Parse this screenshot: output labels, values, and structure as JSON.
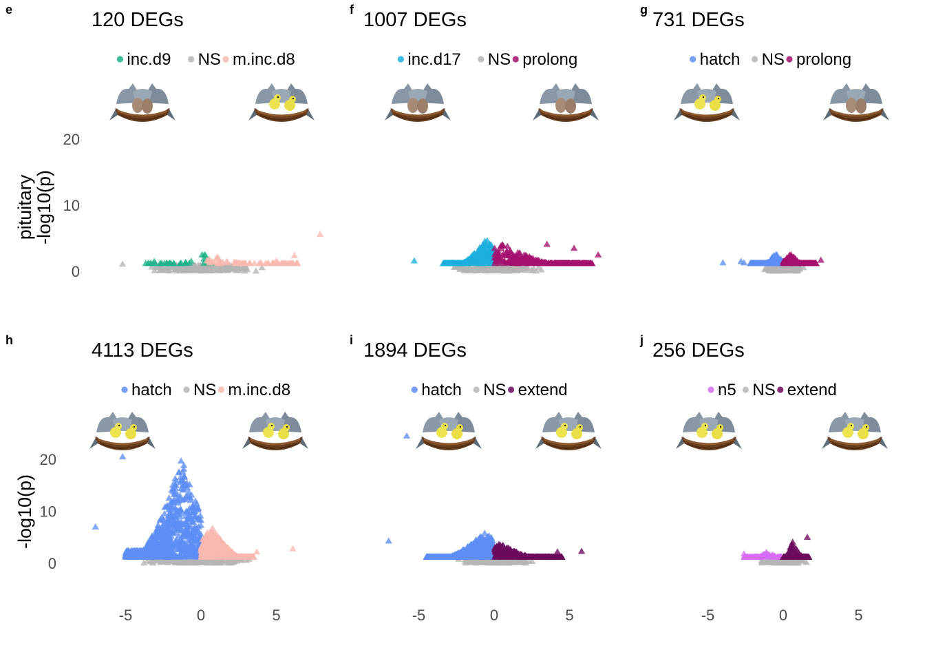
{
  "figure": {
    "row_ylabels": [
      [
        "pituitary",
        "-log10(p)"
      ],
      [
        "-log10(p)"
      ]
    ],
    "x_ticks": [
      "-5",
      "0",
      "5"
    ],
    "y_ticks": [
      "0",
      "10",
      "20"
    ]
  },
  "chart_data": [
    {
      "type": "scatter",
      "panel": "e",
      "title": "120 DEGs",
      "legend": [
        {
          "label": "inc.d9",
          "color": "#1FB38A"
        },
        {
          "label": "NS",
          "color": "#B5B5B5"
        },
        {
          "label": "m.inc.d8",
          "color": "#F8B9B0"
        }
      ],
      "xlim": [
        -7.5,
        8.5
      ],
      "ylim": [
        0,
        22
      ],
      "left_icon": "nest-with-eggs",
      "right_icon": "nest-with-chicks",
      "ns_cloud": {
        "x_range": [
          -4.5,
          4.5
        ],
        "y_max": 1.0
      },
      "down": {
        "x_range": [
          -3.7,
          0.8
        ],
        "y_max": 2.7,
        "peak_x": 0.2,
        "count": 40
      },
      "up": {
        "x_range": [
          0.4,
          6.5
        ],
        "y_max": 2.3,
        "peak_x": 1.0,
        "count": 80
      },
      "outliers": [
        {
          "x": -5.2,
          "y": 1.1,
          "group": "ns"
        },
        {
          "x": 7.9,
          "y": 5.6,
          "group": "up"
        },
        {
          "x": 6.2,
          "y": 2.4,
          "group": "up"
        },
        {
          "x": 5.0,
          "y": 1.6,
          "group": "up"
        },
        {
          "x": -3.1,
          "y": 1.5,
          "group": "down"
        }
      ]
    },
    {
      "type": "scatter",
      "panel": "f",
      "title": "1007 DEGs",
      "legend": [
        {
          "label": "inc.d17",
          "color": "#1BB0DE"
        },
        {
          "label": "NS",
          "color": "#B5B5B5"
        },
        {
          "label": "prolong",
          "color": "#A40F6E"
        }
      ],
      "xlim": [
        -7.5,
        8.5
      ],
      "ylim": [
        0,
        22
      ],
      "left_icon": "nest-with-eggs",
      "right_icon": "nest-with-eggs",
      "ns_cloud": {
        "x_range": [
          -3.5,
          4.0
        ],
        "y_max": 0.9
      },
      "down": {
        "x_range": [
          -3.4,
          0.0
        ],
        "y_max": 5.0,
        "peak_x": -0.5,
        "count": 300
      },
      "up": {
        "x_range": [
          0.0,
          6.5
        ],
        "y_max": 4.2,
        "peak_x": 0.6,
        "count": 320
      },
      "outliers": [
        {
          "x": -5.3,
          "y": 1.6,
          "group": "down"
        },
        {
          "x": 6.9,
          "y": 2.5,
          "group": "up"
        },
        {
          "x": 5.3,
          "y": 3.5,
          "group": "up"
        },
        {
          "x": 3.5,
          "y": 4.1,
          "group": "up"
        }
      ]
    },
    {
      "type": "scatter",
      "panel": "g",
      "title": "731 DEGs",
      "legend": [
        {
          "label": "hatch",
          "color": "#5D8EF5"
        },
        {
          "label": "NS",
          "color": "#B5B5B5"
        },
        {
          "label": "prolong",
          "color": "#A40F6E"
        }
      ],
      "xlim": [
        -7.5,
        8.5
      ],
      "ylim": [
        0,
        22
      ],
      "left_icon": "nest-with-chicks",
      "right_icon": "nest-with-eggs",
      "ns_cloud": {
        "x_range": [
          -1.6,
          1.6
        ],
        "y_max": 0.8
      },
      "down": {
        "x_range": [
          -2.2,
          0.0
        ],
        "y_max": 2.8,
        "peak_x": -0.5,
        "count": 200
      },
      "up": {
        "x_range": [
          0.0,
          2.2
        ],
        "y_max": 2.8,
        "peak_x": 0.5,
        "count": 200
      },
      "outliers": [
        {
          "x": -4.0,
          "y": 1.3,
          "group": "down"
        },
        {
          "x": -2.8,
          "y": 1.5,
          "group": "down"
        },
        {
          "x": -2.6,
          "y": 1.3,
          "group": "down"
        },
        {
          "x": 2.5,
          "y": 1.7,
          "group": "up"
        }
      ]
    },
    {
      "type": "scatter",
      "panel": "h",
      "title": "4113 DEGs",
      "legend": [
        {
          "label": "hatch",
          "color": "#5D8EF5"
        },
        {
          "label": "NS",
          "color": "#B5B5B5"
        },
        {
          "label": "m.inc.d8",
          "color": "#F8B9B0"
        }
      ],
      "xlim": [
        -7.5,
        8.5
      ],
      "ylim": [
        0,
        22
      ],
      "left_icon": "nest-with-chicks",
      "right_icon": "nest-with-chicks",
      "ns_cloud": {
        "x_range": [
          -4.8,
          4.2
        ],
        "y_max": 1.0
      },
      "down": {
        "x_range": [
          -5.0,
          0.0
        ],
        "y_max": 20.5,
        "peak_x": -1.3,
        "count": 1400
      },
      "up": {
        "x_range": [
          0.0,
          3.5
        ],
        "y_max": 7.2,
        "peak_x": 0.7,
        "count": 600
      },
      "outliers": [
        {
          "x": -7.0,
          "y": 7.0,
          "group": "down"
        },
        {
          "x": -5.2,
          "y": 20.5,
          "group": "down"
        },
        {
          "x": 6.1,
          "y": 2.8,
          "group": "up"
        },
        {
          "x": 3.7,
          "y": 2.2,
          "group": "up"
        }
      ]
    },
    {
      "type": "scatter",
      "panel": "i",
      "title": "1894 DEGs",
      "legend": [
        {
          "label": "hatch",
          "color": "#5D8EF5"
        },
        {
          "label": "NS",
          "color": "#B5B5B5"
        },
        {
          "label": "extend",
          "color": "#6B0A5E"
        }
      ],
      "xlim": [
        -7.5,
        8.5
      ],
      "ylim": [
        0,
        22
      ],
      "left_icon": "nest-with-chicks",
      "right_icon": "nest-with-chicks",
      "ns_cloud": {
        "x_range": [
          -3.2,
          3.0
        ],
        "y_max": 0.9
      },
      "down": {
        "x_range": [
          -4.5,
          0.0
        ],
        "y_max": 6.0,
        "peak_x": -0.6,
        "count": 600
      },
      "up": {
        "x_range": [
          0.0,
          4.5
        ],
        "y_max": 3.8,
        "peak_x": 0.4,
        "count": 400
      },
      "outliers": [
        {
          "x": -5.8,
          "y": 24.5,
          "group": "down"
        },
        {
          "x": -7.0,
          "y": 4.3,
          "group": "down"
        },
        {
          "x": 5.8,
          "y": 2.3,
          "group": "up"
        },
        {
          "x": 4.2,
          "y": 2.2,
          "group": "up"
        }
      ]
    },
    {
      "type": "scatter",
      "panel": "j",
      "title": "256 DEGs",
      "legend": [
        {
          "label": "n5",
          "color": "#D66BF5"
        },
        {
          "label": "NS",
          "color": "#B5B5B5"
        },
        {
          "label": "extend",
          "color": "#6B0A5E"
        }
      ],
      "xlim": [
        -7.5,
        8.5
      ],
      "ylim": [
        0,
        22
      ],
      "left_icon": "nest-with-chicks",
      "right_icon": "nest-with-chicks",
      "ns_cloud": {
        "x_range": [
          -1.6,
          1.7
        ],
        "y_max": 0.8
      },
      "down": {
        "x_range": [
          -2.6,
          -0.1
        ],
        "y_max": 2.6,
        "peak_x": -1.0,
        "count": 80
      },
      "up": {
        "x_range": [
          0.0,
          1.7
        ],
        "y_max": 5.0,
        "peak_x": 0.7,
        "count": 130
      },
      "outliers": [
        {
          "x": 1.6,
          "y": 5.0,
          "group": "up"
        },
        {
          "x": -2.6,
          "y": 1.8,
          "group": "down"
        }
      ]
    }
  ]
}
